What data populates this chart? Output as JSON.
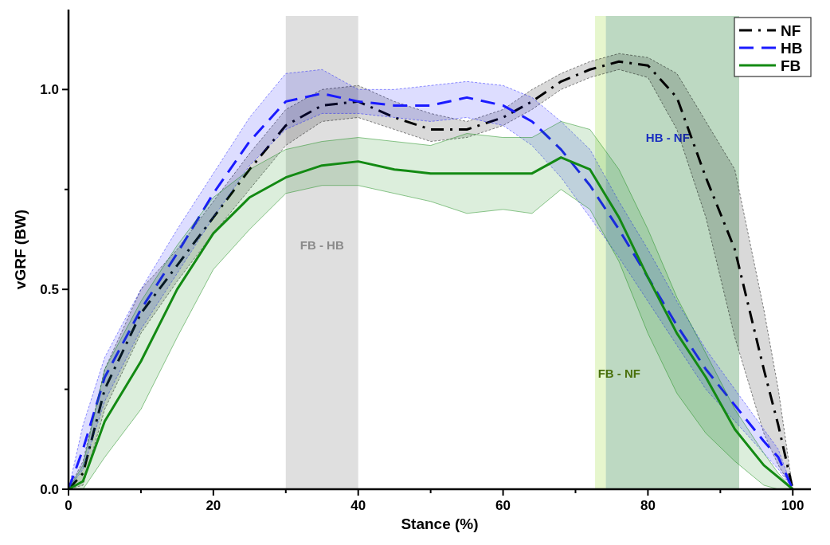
{
  "chart_data": {
    "type": "line",
    "xlabel": "Stance (%)",
    "ylabel": "vGRF (BW)",
    "x": [
      0,
      2,
      5,
      10,
      15,
      20,
      25,
      30,
      35,
      40,
      45,
      50,
      55,
      60,
      64,
      68,
      72,
      76,
      80,
      84,
      88,
      92,
      96,
      98,
      100
    ],
    "xlim": [
      0,
      102.5
    ],
    "ylim": [
      0,
      1.2
    ],
    "xticks": [
      0,
      {
        "value": 10,
        "label": null
      },
      20,
      {
        "value": 30,
        "label": null
      },
      40,
      {
        "value": 50,
        "label": null
      },
      60,
      {
        "value": 70,
        "label": null
      },
      80,
      {
        "value": 90,
        "label": null
      },
      100
    ],
    "yticks": [
      {
        "value": 0,
        "label": "0.0"
      },
      {
        "value": 0.25,
        "label": null
      },
      {
        "value": 0.5,
        "label": "0.5"
      },
      {
        "value": 0.75,
        "label": null
      },
      {
        "value": 1,
        "label": "1.0"
      }
    ],
    "grid": false,
    "legend": "top right",
    "marker": "none",
    "series": [
      {
        "name": "NF",
        "color": "#000000",
        "line_style": "dashdot",
        "values": [
          0,
          0.04,
          0.25,
          0.44,
          0.56,
          0.68,
          0.8,
          0.91,
          0.96,
          0.97,
          0.93,
          0.9,
          0.9,
          0.93,
          0.97,
          1.02,
          1.05,
          1.07,
          1.06,
          0.98,
          0.78,
          0.6,
          0.3,
          0.16,
          0
        ],
        "upper": [
          0,
          0.07,
          0.3,
          0.5,
          0.6,
          0.72,
          0.84,
          0.95,
          1.0,
          1.01,
          0.97,
          0.94,
          0.92,
          0.95,
          1.0,
          1.04,
          1.07,
          1.09,
          1.08,
          1.04,
          0.92,
          0.8,
          0.45,
          0.25,
          0
        ],
        "lower": [
          0,
          0.01,
          0.2,
          0.39,
          0.52,
          0.64,
          0.75,
          0.86,
          0.92,
          0.93,
          0.9,
          0.87,
          0.88,
          0.91,
          0.95,
          1.0,
          1.03,
          1.05,
          1.03,
          0.9,
          0.68,
          0.38,
          0.14,
          0.06,
          0
        ]
      },
      {
        "name": "HB",
        "color": "#1a1aff",
        "line_style": "dashed",
        "values": [
          0,
          0.1,
          0.28,
          0.45,
          0.59,
          0.74,
          0.87,
          0.97,
          0.99,
          0.97,
          0.96,
          0.96,
          0.98,
          0.96,
          0.92,
          0.85,
          0.76,
          0.65,
          0.53,
          0.41,
          0.3,
          0.21,
          0.12,
          0.08,
          0
        ],
        "upper": [
          0,
          0.16,
          0.33,
          0.5,
          0.65,
          0.79,
          0.93,
          1.04,
          1.05,
          1.0,
          1.0,
          1.01,
          1.02,
          1.01,
          0.98,
          0.92,
          0.85,
          0.72,
          0.6,
          0.47,
          0.35,
          0.25,
          0.15,
          0.1,
          0
        ],
        "lower": [
          0,
          0.05,
          0.22,
          0.4,
          0.54,
          0.68,
          0.81,
          0.9,
          0.94,
          0.94,
          0.93,
          0.92,
          0.93,
          0.91,
          0.86,
          0.78,
          0.68,
          0.58,
          0.47,
          0.36,
          0.25,
          0.17,
          0.09,
          0.05,
          0
        ]
      },
      {
        "name": "FB",
        "color": "#138a13",
        "line_style": "solid",
        "values": [
          0,
          0.02,
          0.17,
          0.32,
          0.5,
          0.64,
          0.73,
          0.78,
          0.81,
          0.82,
          0.8,
          0.79,
          0.79,
          0.79,
          0.79,
          0.83,
          0.8,
          0.68,
          0.53,
          0.39,
          0.28,
          0.15,
          0.06,
          0.03,
          0
        ],
        "upper": [
          0,
          0.06,
          0.3,
          0.47,
          0.61,
          0.73,
          0.8,
          0.85,
          0.87,
          0.88,
          0.87,
          0.86,
          0.89,
          0.88,
          0.88,
          0.92,
          0.9,
          0.8,
          0.65,
          0.48,
          0.34,
          0.2,
          0.09,
          0.04,
          0
        ],
        "lower": [
          0,
          0,
          0.08,
          0.2,
          0.38,
          0.55,
          0.65,
          0.74,
          0.76,
          0.76,
          0.74,
          0.72,
          0.69,
          0.7,
          0.69,
          0.75,
          0.7,
          0.57,
          0.39,
          0.24,
          0.14,
          0.07,
          0.01,
          0,
          0
        ]
      }
    ],
    "bands": [
      {
        "axis": "x",
        "from": 30,
        "to": 40,
        "label": "FB - HB",
        "color": "#d9d9d9"
      },
      {
        "axis": "x",
        "from": 72.7,
        "to": 92.6,
        "label": "FB - NF",
        "color": "#e2f5c4"
      },
      {
        "axis": "x",
        "from": 74.2,
        "to": 92.6,
        "label": "HB - NF",
        "color": "#b5d3bf"
      }
    ]
  }
}
